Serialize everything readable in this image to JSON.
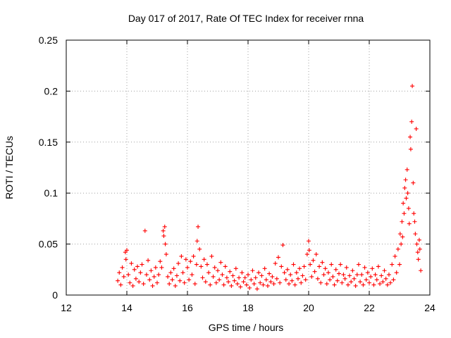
{
  "chart_data": {
    "type": "scatter",
    "title": "Day 017 of 2017, Rate Of TEC Index for receiver rnna",
    "xlabel": "GPS time / hours",
    "ylabel": "ROTI / TECUs",
    "xlim": [
      12,
      24
    ],
    "ylim": [
      0,
      0.25
    ],
    "x_ticks": [
      12,
      14,
      16,
      18,
      20,
      22,
      24
    ],
    "x_tick_labels": [
      "12",
      "14",
      "16",
      "18",
      "20",
      "22",
      "24"
    ],
    "y_ticks": [
      0,
      0.05,
      0.1,
      0.15,
      0.2,
      0.25
    ],
    "y_tick_labels": [
      "0",
      "0.05",
      "0.1",
      "0.15",
      "0.2",
      "0.25"
    ],
    "grid": true,
    "marker": "plus",
    "color": "#ff0000",
    "series": [
      {
        "points": [
          [
            13.7,
            0.014
          ],
          [
            13.75,
            0.022
          ],
          [
            13.8,
            0.01
          ],
          [
            13.85,
            0.027
          ],
          [
            13.9,
            0.018
          ],
          [
            13.95,
            0.042
          ],
          [
            13.97,
            0.035
          ],
          [
            14.0,
            0.044
          ],
          [
            14.05,
            0.02
          ],
          [
            14.1,
            0.012
          ],
          [
            14.15,
            0.031
          ],
          [
            14.2,
            0.009
          ],
          [
            14.25,
            0.025
          ],
          [
            14.3,
            0.016
          ],
          [
            14.35,
            0.028
          ],
          [
            14.4,
            0.013
          ],
          [
            14.45,
            0.022
          ],
          [
            14.5,
            0.03
          ],
          [
            14.55,
            0.011
          ],
          [
            14.6,
            0.063
          ],
          [
            14.65,
            0.02
          ],
          [
            14.7,
            0.034
          ],
          [
            14.75,
            0.015
          ],
          [
            14.8,
            0.024
          ],
          [
            14.85,
            0.009
          ],
          [
            14.9,
            0.018
          ],
          [
            14.95,
            0.027
          ],
          [
            15.0,
            0.012
          ],
          [
            15.05,
            0.02
          ],
          [
            15.1,
            0.033
          ],
          [
            15.15,
            0.027
          ],
          [
            15.2,
            0.063
          ],
          [
            15.22,
            0.058
          ],
          [
            15.25,
            0.067
          ],
          [
            15.27,
            0.05
          ],
          [
            15.3,
            0.04
          ],
          [
            15.35,
            0.018
          ],
          [
            15.4,
            0.011
          ],
          [
            15.45,
            0.022
          ],
          [
            15.5,
            0.015
          ],
          [
            15.55,
            0.026
          ],
          [
            15.6,
            0.009
          ],
          [
            15.65,
            0.019
          ],
          [
            15.7,
            0.031
          ],
          [
            15.75,
            0.014
          ],
          [
            15.8,
            0.038
          ],
          [
            15.85,
            0.022
          ],
          [
            15.9,
            0.012
          ],
          [
            15.95,
            0.035
          ],
          [
            16.0,
            0.027
          ],
          [
            16.05,
            0.015
          ],
          [
            16.1,
            0.033
          ],
          [
            16.15,
            0.02
          ],
          [
            16.2,
            0.038
          ],
          [
            16.25,
            0.011
          ],
          [
            16.3,
            0.03
          ],
          [
            16.32,
            0.053
          ],
          [
            16.35,
            0.067
          ],
          [
            16.4,
            0.045
          ],
          [
            16.45,
            0.028
          ],
          [
            16.5,
            0.017
          ],
          [
            16.55,
            0.035
          ],
          [
            16.6,
            0.013
          ],
          [
            16.65,
            0.03
          ],
          [
            16.7,
            0.022
          ],
          [
            16.75,
            0.01
          ],
          [
            16.8,
            0.038
          ],
          [
            16.85,
            0.018
          ],
          [
            16.9,
            0.027
          ],
          [
            16.95,
            0.012
          ],
          [
            17.0,
            0.024
          ],
          [
            17.05,
            0.015
          ],
          [
            17.1,
            0.032
          ],
          [
            17.15,
            0.02
          ],
          [
            17.2,
            0.01
          ],
          [
            17.25,
            0.028
          ],
          [
            17.3,
            0.017
          ],
          [
            17.35,
            0.013
          ],
          [
            17.4,
            0.023
          ],
          [
            17.45,
            0.009
          ],
          [
            17.5,
            0.019
          ],
          [
            17.55,
            0.014
          ],
          [
            17.6,
            0.026
          ],
          [
            17.65,
            0.011
          ],
          [
            17.7,
            0.017
          ],
          [
            17.75,
            0.008
          ],
          [
            17.8,
            0.022
          ],
          [
            17.85,
            0.013
          ],
          [
            17.9,
            0.017
          ],
          [
            17.95,
            0.01
          ],
          [
            18.0,
            0.02
          ],
          [
            18.05,
            0.007
          ],
          [
            18.1,
            0.015
          ],
          [
            18.15,
            0.024
          ],
          [
            18.2,
            0.011
          ],
          [
            18.25,
            0.017
          ],
          [
            18.3,
            0.006
          ],
          [
            18.35,
            0.022
          ],
          [
            18.4,
            0.012
          ],
          [
            18.45,
            0.019
          ],
          [
            18.5,
            0.01
          ],
          [
            18.55,
            0.026
          ],
          [
            18.6,
            0.015
          ],
          [
            18.65,
            0.009
          ],
          [
            18.7,
            0.021
          ],
          [
            18.75,
            0.013
          ],
          [
            18.8,
            0.018
          ],
          [
            18.85,
            0.011
          ],
          [
            18.9,
            0.031
          ],
          [
            18.95,
            0.016
          ],
          [
            19.0,
            0.037
          ],
          [
            19.05,
            0.012
          ],
          [
            19.1,
            0.028
          ],
          [
            19.15,
            0.049
          ],
          [
            19.2,
            0.022
          ],
          [
            19.25,
            0.015
          ],
          [
            19.3,
            0.025
          ],
          [
            19.35,
            0.011
          ],
          [
            19.4,
            0.02
          ],
          [
            19.45,
            0.014
          ],
          [
            19.5,
            0.03
          ],
          [
            19.55,
            0.01
          ],
          [
            19.6,
            0.022
          ],
          [
            19.65,
            0.016
          ],
          [
            19.7,
            0.026
          ],
          [
            19.75,
            0.012
          ],
          [
            19.8,
            0.019
          ],
          [
            19.85,
            0.028
          ],
          [
            19.9,
            0.015
          ],
          [
            19.95,
            0.04
          ],
          [
            20.0,
            0.053
          ],
          [
            20.02,
            0.044
          ],
          [
            20.05,
            0.03
          ],
          [
            20.1,
            0.018
          ],
          [
            20.15,
            0.034
          ],
          [
            20.2,
            0.023
          ],
          [
            20.25,
            0.04
          ],
          [
            20.3,
            0.016
          ],
          [
            20.35,
            0.028
          ],
          [
            20.4,
            0.012
          ],
          [
            20.45,
            0.032
          ],
          [
            20.5,
            0.02
          ],
          [
            20.55,
            0.026
          ],
          [
            20.6,
            0.011
          ],
          [
            20.65,
            0.022
          ],
          [
            20.7,
            0.015
          ],
          [
            20.75,
            0.03
          ],
          [
            20.8,
            0.018
          ],
          [
            20.85,
            0.01
          ],
          [
            20.9,
            0.025
          ],
          [
            20.95,
            0.014
          ],
          [
            21.0,
            0.021
          ],
          [
            21.05,
            0.03
          ],
          [
            21.1,
            0.012
          ],
          [
            21.15,
            0.02
          ],
          [
            21.2,
            0.016
          ],
          [
            21.25,
            0.027
          ],
          [
            21.3,
            0.01
          ],
          [
            21.35,
            0.019
          ],
          [
            21.4,
            0.013
          ],
          [
            21.45,
            0.024
          ],
          [
            21.5,
            0.016
          ],
          [
            21.55,
            0.009
          ],
          [
            21.6,
            0.02
          ],
          [
            21.65,
            0.03
          ],
          [
            21.7,
            0.013
          ],
          [
            21.75,
            0.02
          ],
          [
            21.8,
            0.01
          ],
          [
            21.85,
            0.027
          ],
          [
            21.9,
            0.015
          ],
          [
            21.95,
            0.022
          ],
          [
            22.0,
            0.012
          ],
          [
            22.05,
            0.018
          ],
          [
            22.1,
            0.026
          ],
          [
            22.15,
            0.01
          ],
          [
            22.2,
            0.02
          ],
          [
            22.25,
            0.015
          ],
          [
            22.3,
            0.028
          ],
          [
            22.35,
            0.011
          ],
          [
            22.4,
            0.019
          ],
          [
            22.45,
            0.013
          ],
          [
            22.5,
            0.024
          ],
          [
            22.55,
            0.016
          ],
          [
            22.6,
            0.01
          ],
          [
            22.65,
            0.02
          ],
          [
            22.7,
            0.012
          ],
          [
            22.75,
            0.03
          ],
          [
            22.8,
            0.015
          ],
          [
            22.85,
            0.038
          ],
          [
            22.9,
            0.022
          ],
          [
            22.95,
            0.045
          ],
          [
            23.0,
            0.03
          ],
          [
            23.02,
            0.06
          ],
          [
            23.05,
            0.05
          ],
          [
            23.08,
            0.072
          ],
          [
            23.1,
            0.057
          ],
          [
            23.12,
            0.09
          ],
          [
            23.15,
            0.08
          ],
          [
            23.17,
            0.105
          ],
          [
            23.2,
            0.113
          ],
          [
            23.22,
            0.095
          ],
          [
            23.25,
            0.123
          ],
          [
            23.27,
            0.1
          ],
          [
            23.3,
            0.085
          ],
          [
            23.32,
            0.07
          ],
          [
            23.35,
            0.155
          ],
          [
            23.37,
            0.143
          ],
          [
            23.4,
            0.17
          ],
          [
            23.42,
            0.205
          ],
          [
            23.45,
            0.11
          ],
          [
            23.47,
            0.08
          ],
          [
            23.5,
            0.072
          ],
          [
            23.52,
            0.06
          ],
          [
            23.55,
            0.163
          ],
          [
            23.57,
            0.05
          ],
          [
            23.6,
            0.042
          ],
          [
            23.62,
            0.035
          ],
          [
            23.65,
            0.054
          ],
          [
            23.67,
            0.045
          ],
          [
            23.7,
            0.024
          ]
        ]
      }
    ]
  }
}
